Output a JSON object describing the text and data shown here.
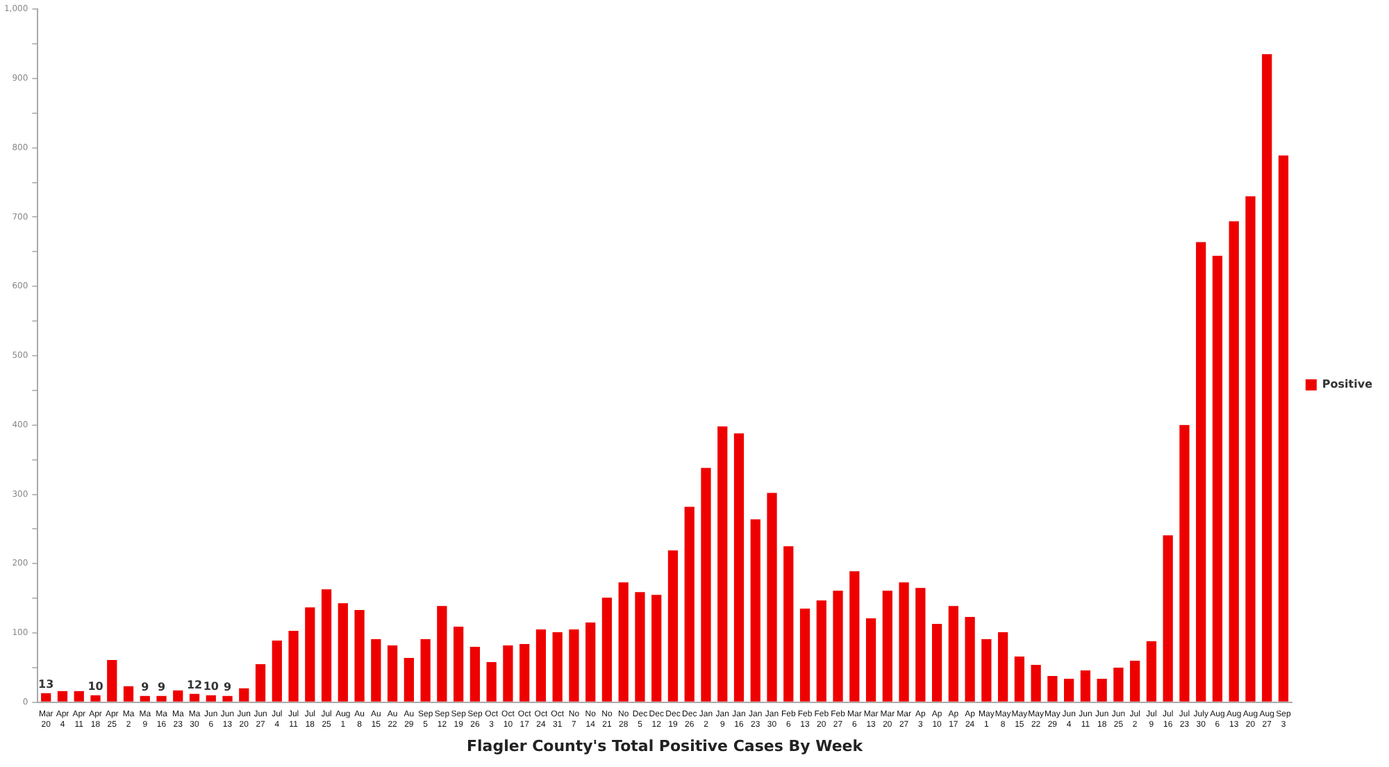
{
  "chart_data": {
    "type": "bar",
    "xlabel": "Flagler County's Total Positive Cases By Week",
    "categories": [
      "Mar 20",
      "Apr 4",
      "Apr 11",
      "Apr 18",
      "Apr 25",
      "Ma 2",
      "Ma 9",
      "Ma 16",
      "Ma 23",
      "Ma 30",
      "Jun 6",
      "Jun 13",
      "Jun 20",
      "Jun 27",
      "Jul 4",
      "Jul 11",
      "Jul 18",
      "Jul 25",
      "Aug 1",
      "Au 8",
      "Au 15",
      "Au 22",
      "Au 29",
      "Sep 5",
      "Sep 12",
      "Sep 19",
      "Sep 26",
      "Oct 3",
      "Oct 10",
      "Oct 17",
      "Oct 24",
      "Oct 31",
      "No 7",
      "No 14",
      "No 21",
      "No 28",
      "Dec 5",
      "Dec 12",
      "Dec 19",
      "Dec 26",
      "Jan 2",
      "Jan 9",
      "Jan 16",
      "Jan 23",
      "Jan 30",
      "Feb 6",
      "Feb 13",
      "Feb 20",
      "Feb 27",
      "Mar 6",
      "Mar 13",
      "Mar 20",
      "Mar 27",
      "Ap 3",
      "Ap 10",
      "Ap 17",
      "Ap 24",
      "May 1",
      "May 8",
      "May 15",
      "May 22",
      "May 29",
      "Jun 4",
      "Jun 11",
      "Jun 18",
      "Jun 25",
      "Jul 2",
      "Jul 9",
      "Jul 16",
      "Jul 23",
      "July 30",
      "Aug 6",
      "Aug 13",
      "Aug 20",
      "Aug 27",
      "Sep 3"
    ],
    "series": [
      {
        "name": "Positive",
        "color": "#ee0000",
        "values": [
          13,
          16,
          16,
          10,
          61,
          23,
          9,
          9,
          17,
          12,
          10,
          9,
          20,
          55,
          89,
          103,
          137,
          163,
          143,
          133,
          91,
          82,
          64,
          91,
          139,
          109,
          80,
          58,
          82,
          84,
          105,
          101,
          105,
          115,
          151,
          173,
          159,
          155,
          219,
          282,
          338,
          398,
          388,
          264,
          302,
          225,
          135,
          147,
          161,
          189,
          121,
          161,
          173,
          165,
          113,
          139,
          123,
          91,
          101,
          66,
          54,
          38,
          34,
          46,
          34,
          50,
          60,
          88,
          241,
          400,
          664,
          644,
          694,
          730,
          935,
          789
        ],
        "value_labels": [
          "13",
          null,
          null,
          "10",
          null,
          null,
          "9",
          "9",
          null,
          "12",
          "10",
          "9",
          null,
          null,
          null,
          null,
          null,
          null,
          null,
          null,
          null,
          null,
          null,
          null,
          null,
          null,
          null,
          null,
          null,
          null,
          null,
          null,
          null,
          null,
          null,
          null,
          null,
          null,
          null,
          null,
          null,
          null,
          null,
          null,
          null,
          null,
          null,
          null,
          null,
          null,
          null,
          null,
          null,
          null,
          null,
          null,
          null,
          null,
          null,
          null,
          null,
          null,
          null,
          null,
          null,
          null,
          null,
          null,
          null,
          null,
          null,
          null,
          null,
          null,
          null,
          null
        ]
      }
    ],
    "ylim": [
      0,
      1000
    ],
    "yticks": [
      0,
      {
        "value": 50,
        "label": null
      },
      100,
      {
        "value": 150,
        "label": null
      },
      200,
      {
        "value": 250,
        "label": null
      },
      300,
      {
        "value": 350,
        "label": null
      },
      400,
      {
        "value": 450,
        "label": null
      },
      500,
      {
        "value": 550,
        "label": null
      },
      600,
      {
        "value": 650,
        "label": null
      },
      700,
      {
        "value": 750,
        "label": null
      },
      800,
      {
        "value": 850,
        "label": null
      },
      900,
      {
        "value": 950,
        "label": null
      },
      {
        "value": 1000,
        "label": "1,000"
      }
    ],
    "grid": false,
    "legend": "right"
  }
}
